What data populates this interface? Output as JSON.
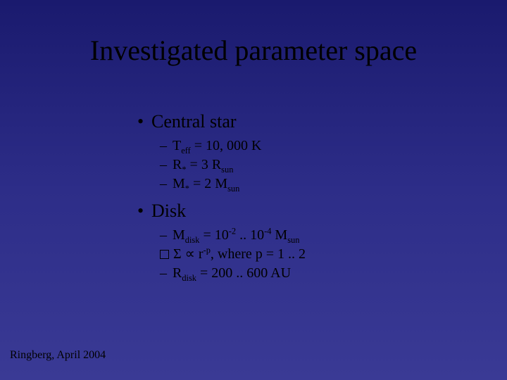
{
  "slide": {
    "title": "Investigated parameter space",
    "background_gradient": [
      "#1a1a6e",
      "#2d2d88",
      "#3a3a95"
    ],
    "text_color": "#000000",
    "font_family": "Times New Roman",
    "title_fontsize": 40,
    "bullet_fontsize": 26,
    "sub_fontsize": 20,
    "footer_fontsize": 16
  },
  "bullets": {
    "b1": "Central star",
    "b1_items": {
      "i1_pre": "T",
      "i1_sub": "eff",
      "i1_post": "  = 10, 000 K",
      "i2_pre": "R",
      "i2_sub": "*",
      "i2_post": "   = 3 R",
      "i2_sub2": "sun",
      "i3_pre": "M",
      "i3_sub": "*",
      "i3_post": "  = 2 M",
      "i3_sub2": "sun"
    },
    "b2": "Disk",
    "b2_items": {
      "j1_pre": "M",
      "j1_sub": "disk",
      "j1_mid": " = 10",
      "j1_sup1": "-2",
      "j1_dots": " .. 10",
      "j1_sup2": "-4",
      "j1_post": " M",
      "j1_sub2": "sun",
      "j2_sigma": "Σ",
      "j2_prop": " ∝ r",
      "j2_sup": "-p",
      "j2_post": ",  where  p = 1 .. 2",
      "j3_pre": "R",
      "j3_sub": "disk",
      "j3_post": " = 200 .. 600 AU"
    }
  },
  "footer": "Ringberg, April 2004"
}
